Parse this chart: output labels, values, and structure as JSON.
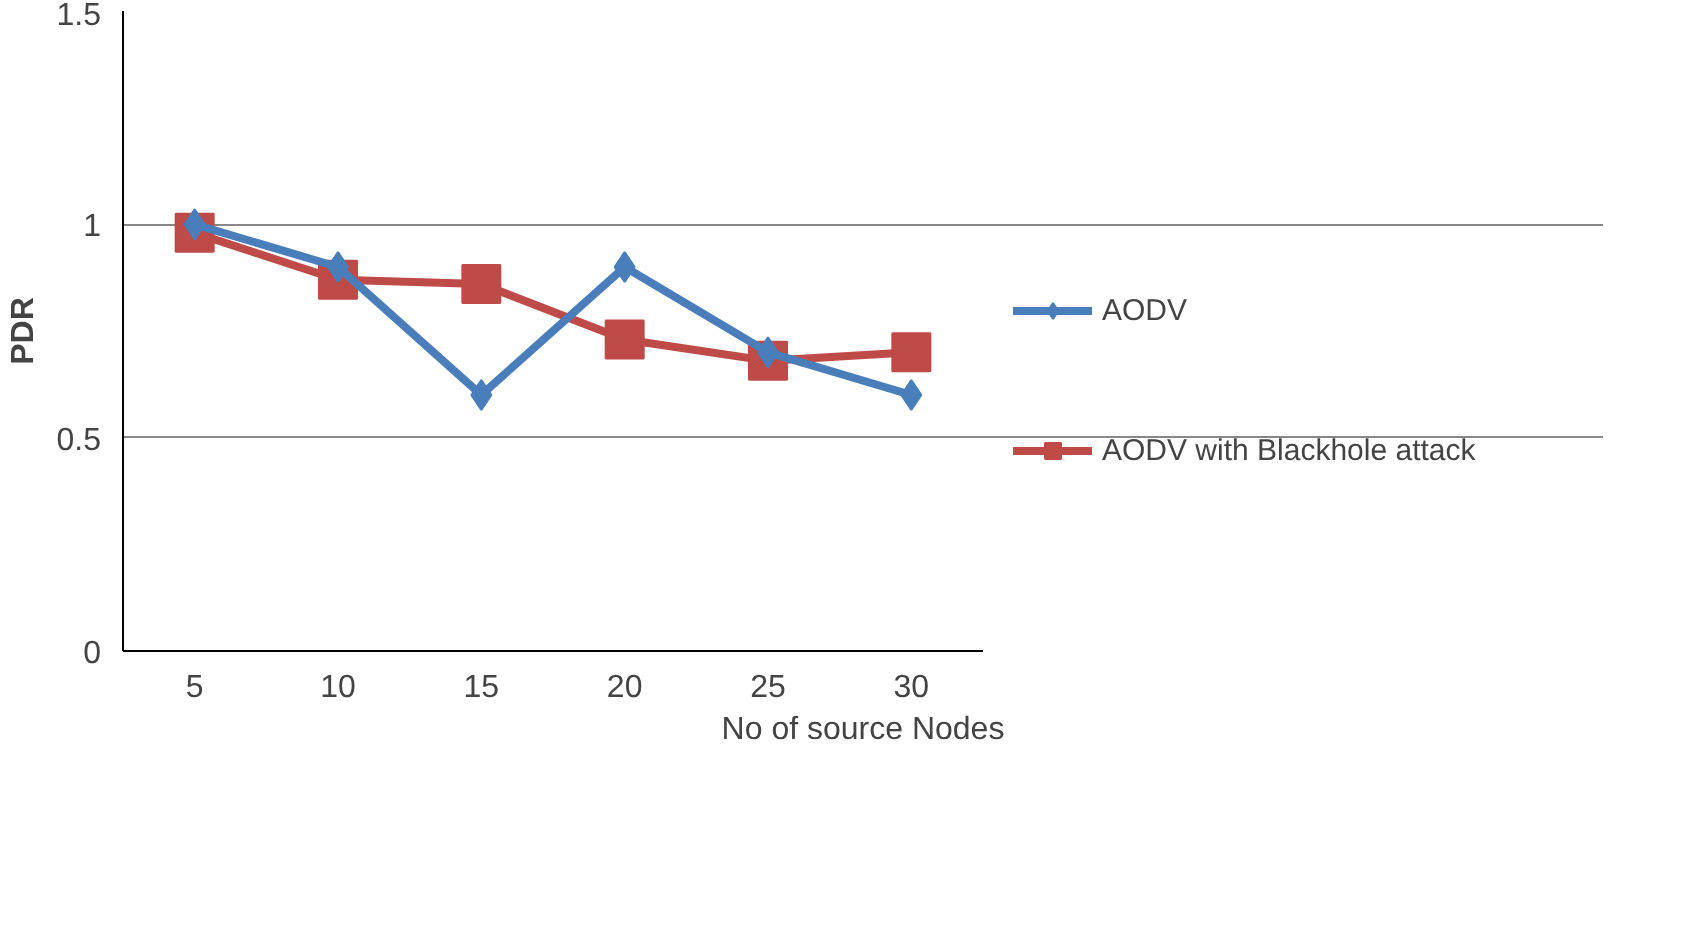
{
  "chart_data": {
    "type": "line",
    "xlabel": "No of source Nodes",
    "ylabel": "PDR",
    "categories": [
      "5",
      "10",
      "15",
      "20",
      "25",
      "30"
    ],
    "series": [
      {
        "name": "AODV",
        "color": "#4a7ebb",
        "marker": "diamond",
        "values": [
          1.0,
          0.9,
          0.6,
          0.9,
          0.7,
          0.6
        ]
      },
      {
        "name": "AODV with Blackhole attack",
        "color": "#be4b48",
        "marker": "square",
        "values": [
          0.98,
          0.87,
          0.86,
          0.73,
          0.68,
          0.7
        ]
      }
    ],
    "ylim": [
      0,
      1.5
    ],
    "yticks": [
      0,
      0.5,
      1,
      1.5
    ],
    "grid": "y",
    "legend": "right",
    "line_style": "solid"
  }
}
